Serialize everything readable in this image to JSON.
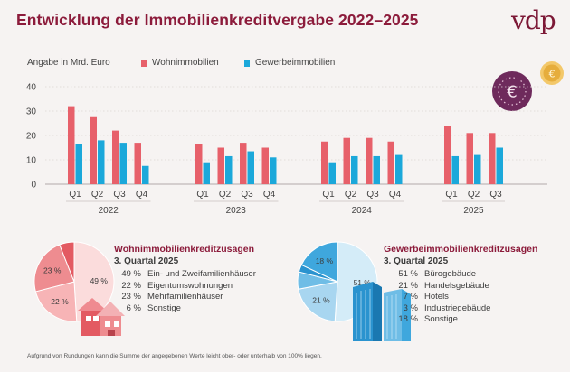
{
  "title": "Entwicklung der Immobilienkreditvergabe 2022–2025",
  "logo": "vdp",
  "unit_label": "Angabe in Mrd. Euro",
  "colors": {
    "wohn": "#e7606a",
    "gewerbe": "#1ba8da",
    "accent": "#8c1b3b",
    "coin_purple": "#6e2a5c",
    "coin_gold": "#d9a52b"
  },
  "chart_data": {
    "type": "bar",
    "ylim": [
      0,
      40
    ],
    "yticks": [
      0,
      10,
      20,
      30,
      40
    ],
    "groups": [
      {
        "year": "2022",
        "quarters": [
          "Q1",
          "Q2",
          "Q3",
          "Q4"
        ],
        "wohn": [
          32,
          27.5,
          22,
          17
        ],
        "gewerbe": [
          16.5,
          18,
          17,
          7.5
        ]
      },
      {
        "year": "2023",
        "quarters": [
          "Q1",
          "Q2",
          "Q3",
          "Q4"
        ],
        "wohn": [
          16.5,
          15,
          17,
          15
        ],
        "gewerbe": [
          9,
          11.5,
          13.5,
          11
        ]
      },
      {
        "year": "2024",
        "quarters": [
          "Q1",
          "Q2",
          "Q3",
          "Q4"
        ],
        "wohn": [
          17.5,
          19,
          19,
          17.5
        ],
        "gewerbe": [
          9,
          11.5,
          11.5,
          12
        ]
      },
      {
        "year": "2025",
        "quarters": [
          "Q1",
          "Q2",
          "Q3"
        ],
        "wohn": [
          24,
          21,
          21
        ],
        "gewerbe": [
          11.5,
          12,
          15
        ]
      }
    ],
    "series": [
      {
        "name": "Wohnimmobilien",
        "key": "wohn"
      },
      {
        "name": "Gewerbeimmobilien",
        "key": "gewerbe"
      }
    ],
    "legend_position": "top"
  },
  "wohn_section": {
    "title": "Wohnimmobilienkreditzusagen",
    "subtitle": "3. Quartal 2025",
    "items": [
      {
        "pct": "49 %",
        "label": "Ein- und Zweifamilienhäuser",
        "value": 49
      },
      {
        "pct": "22 %",
        "label": "Eigentumswohnungen",
        "value": 22
      },
      {
        "pct": "23 %",
        "label": "Mehrfamilienhäuser",
        "value": 23
      },
      {
        "pct": "6 %",
        "label": "Sonstige",
        "value": 6
      }
    ],
    "slice_colors": [
      "#fbdcdc",
      "#f7b4b6",
      "#ee8c90",
      "#e35a62"
    ],
    "slice_labels": [
      "49 %",
      "22 %",
      "23 %",
      ""
    ]
  },
  "gewerbe_section": {
    "title": "Gewerbeimmobilienkreditzusagen",
    "subtitle": "3. Quartal 2025",
    "items": [
      {
        "pct": "51 %",
        "label": "Bürogebäude",
        "value": 51
      },
      {
        "pct": "21 %",
        "label": "Handelsgebäude",
        "value": 21
      },
      {
        "pct": "7 %",
        "label": "Hotels",
        "value": 7
      },
      {
        "pct": "3 %",
        "label": "Industriegebäude",
        "value": 3
      },
      {
        "pct": "18 %",
        "label": "Sonstige",
        "value": 18
      }
    ],
    "slice_colors": [
      "#d4ecf8",
      "#a8d6f0",
      "#6fbde6",
      "#2a93cf",
      "#3fa7dd"
    ],
    "slice_labels": [
      "51 %",
      "21 %",
      "",
      "",
      "18 %"
    ]
  },
  "footnote": "Aufgrund von Rundungen kann die Summe der angegebenen Werte leicht ober- oder unterhalb von 100% liegen."
}
